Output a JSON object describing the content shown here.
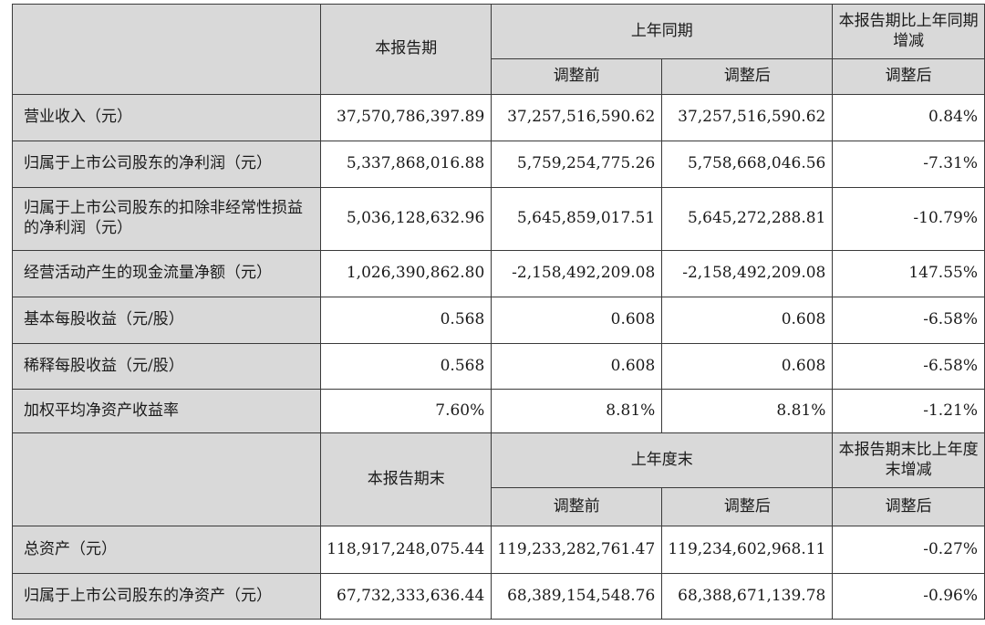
{
  "section1": {
    "header": {
      "current_period": "本报告期",
      "prior_year_same_period": "上年同期",
      "change": "本报告期比上年同期增减",
      "before_adjustment": "调整前",
      "after_adjustment": "调整后",
      "change_after_adjustment": "调整后"
    },
    "rows": [
      {
        "label": "营业收入（元）",
        "current": "37,570,786,397.89",
        "before": "37,257,516,590.62",
        "after": "37,257,516,590.62",
        "change": "0.84%"
      },
      {
        "label": "归属于上市公司股东的净利润（元）",
        "current": "5,337,868,016.88",
        "before": "5,759,254,775.26",
        "after": "5,758,668,046.56",
        "change": "-7.31%"
      },
      {
        "label": "归属于上市公司股东的扣除非经常性损益的净利润（元）",
        "current": "5,036,128,632.96",
        "before": "5,645,859,017.51",
        "after": "5,645,272,288.81",
        "change": "-10.79%"
      },
      {
        "label": "经营活动产生的现金流量净额（元）",
        "current": "1,026,390,862.80",
        "before": "-2,158,492,209.08",
        "after": "-2,158,492,209.08",
        "change": "147.55%"
      },
      {
        "label": "基本每股收益（元/股）",
        "current": "0.568",
        "before": "0.608",
        "after": "0.608",
        "change": "-6.58%"
      },
      {
        "label": "稀释每股收益（元/股）",
        "current": "0.568",
        "before": "0.608",
        "after": "0.608",
        "change": "-6.58%"
      },
      {
        "label": "加权平均净资产收益率",
        "current": "7.60%",
        "before": "8.81%",
        "after": "8.81%",
        "change": "-1.21%"
      }
    ]
  },
  "section2": {
    "header": {
      "current_period_end": "本报告期末",
      "prior_year_end": "上年度末",
      "change": "本报告期末比上年度末增减",
      "before_adjustment": "调整前",
      "after_adjustment": "调整后",
      "change_after_adjustment": "调整后"
    },
    "rows": [
      {
        "label": "总资产（元）",
        "current": "118,917,248,075.44",
        "before": "119,233,282,761.47",
        "after": "119,234,602,968.11",
        "change": "-0.27%"
      },
      {
        "label": "归属于上市公司股东的净资产（元）",
        "current": "67,732,333,636.44",
        "before": "68,389,154,548.76",
        "after": "68,388,671,139.78",
        "change": "-0.96%"
      }
    ]
  }
}
